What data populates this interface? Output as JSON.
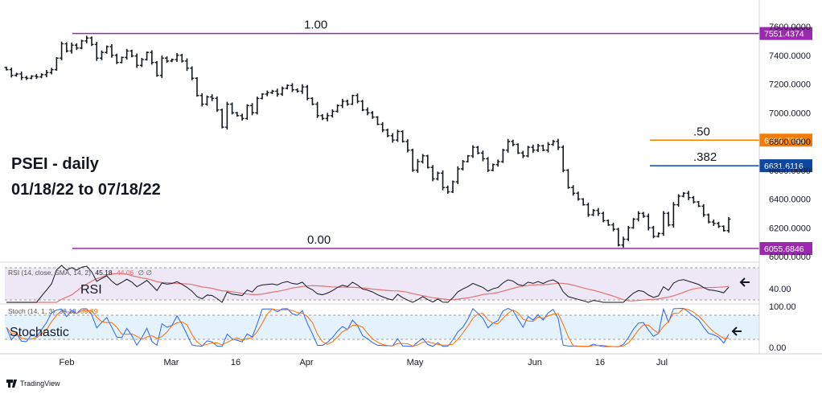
{
  "chart_data": {
    "type": "ohlc",
    "title": "PSEI - daily",
    "subtitle": "01/18/22 to 07/18/22",
    "price_axis": {
      "ylim": [
        6040,
        7600
      ],
      "ticks": [
        7600,
        7400,
        7200,
        7000,
        6800,
        6600,
        6400,
        6200,
        6000
      ]
    },
    "tick_labels": [
      "7600.0000",
      "7400.0000",
      "7200.0000",
      "7000.0000",
      "6800.0000",
      "6600.0000",
      "6400.0000",
      "6200.0000",
      "6000.0000"
    ],
    "x_tick_labels": [
      "Feb",
      "Mar",
      "16",
      "Apr",
      "May",
      "Jun",
      "16",
      "Jul"
    ],
    "fib_levels": [
      {
        "label": "1.00",
        "value": 7551.4374,
        "tag": "7551.4374",
        "color": "#9c27b0"
      },
      {
        "label": ".50",
        "value": 6809.776,
        "tag": "6809.7760",
        "color": "#f57c00"
      },
      {
        "label": ".382",
        "value": 6631.6116,
        "tag": "6631.6116",
        "color": "#0d47a1"
      },
      {
        "label": "0.00",
        "value": 6055.6846,
        "tag": "6055.6846",
        "color": "#9c27b0"
      }
    ],
    "close": [
      7300,
      7260,
      7270,
      7245,
      7240,
      7255,
      7250,
      7265,
      7280,
      7300,
      7380,
      7480,
      7430,
      7470,
      7450,
      7500,
      7520,
      7475,
      7380,
      7420,
      7460,
      7400,
      7350,
      7385,
      7430,
      7395,
      7330,
      7370,
      7420,
      7350,
      7260,
      7380,
      7360,
      7370,
      7400,
      7360,
      7310,
      7240,
      7120,
      7060,
      7110,
      7100,
      7020,
      6900,
      7060,
      7000,
      6980,
      6960,
      7050,
      7000,
      7100,
      7130,
      7140,
      7150,
      7130,
      7170,
      7190,
      7160,
      7150,
      7180,
      7100,
      7060,
      6980,
      6960,
      6980,
      7010,
      7050,
      7080,
      7060,
      7120,
      7080,
      7020,
      7000,
      6970,
      6920,
      6880,
      6840,
      6810,
      6870,
      6800,
      6740,
      6600,
      6660,
      6700,
      6620,
      6540,
      6580,
      6480,
      6450,
      6520,
      6610,
      6660,
      6700,
      6760,
      6720,
      6680,
      6600,
      6640,
      6660,
      6740,
      6800,
      6780,
      6720,
      6700,
      6760,
      6740,
      6770,
      6740,
      6780,
      6800,
      6760,
      6600,
      6480,
      6440,
      6400,
      6360,
      6290,
      6320,
      6300,
      6250,
      6220,
      6190,
      6080,
      6120,
      6200,
      6260,
      6300,
      6280,
      6200,
      6140,
      6160,
      6300,
      6220,
      6360,
      6420,
      6440,
      6410,
      6380,
      6350,
      6290,
      6240,
      6230,
      6210,
      6180,
      6260
    ],
    "indicators": {
      "rsi": {
        "label": "RSI",
        "legend": "RSI (14, close, SMA, 14, 2)",
        "legend_values": [
          "45.18",
          "44.06"
        ],
        "legend_suffix": "∅ ∅",
        "levels": [
          70,
          30
        ],
        "ticks": [
          "40.00"
        ]
      },
      "stoch": {
        "label": "Stochastic",
        "legend": "Stoch (14, 1, 3)",
        "legend_values": [
          "38.18",
          "39.89"
        ],
        "levels": [
          80,
          20
        ],
        "ticks": [
          "100.00",
          "0.00"
        ]
      }
    }
  },
  "brand": "TradingView",
  "colors": {
    "bars": "#131722",
    "rsi_line": "#131722",
    "rsi_ma": "#e57373",
    "k_line": "#2962ff",
    "d_line": "#ff6d00",
    "rsi_fill": "#ede7f6",
    "stoch_fill": "#e3f2fd"
  }
}
